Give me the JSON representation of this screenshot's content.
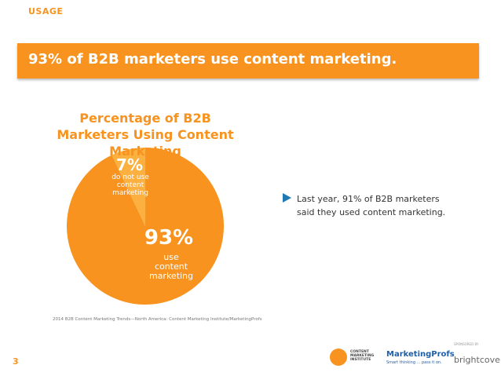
{
  "header": {
    "section": "USAGE",
    "headline": "93% of B2B marketers use content marketing."
  },
  "chart_data": {
    "type": "pie",
    "title": "Percentage of B2B Marketers Using Content Marketing",
    "categories": [
      "use content marketing",
      "do not use content marketing"
    ],
    "values": [
      93,
      7
    ],
    "value_labels": [
      "93%",
      "7%"
    ],
    "colors": [
      "#f7931e",
      "#fbb040"
    ]
  },
  "notes": {
    "bullet": "Last year, 91% of B2B marketers said they used content marketing.",
    "source": "2014 B2B Content Marketing Trends—North America: Content Marketing Institute/MarketingProfs"
  },
  "footer": {
    "page_number": "3",
    "cmi": "CONTENT MARKETING INSTITUTE",
    "mp": "MarketingProfs",
    "mp_tagline": "Smart thinking ... pass it on.",
    "sponsored": "SPONSORED BY",
    "brightcove": "brightcove"
  }
}
